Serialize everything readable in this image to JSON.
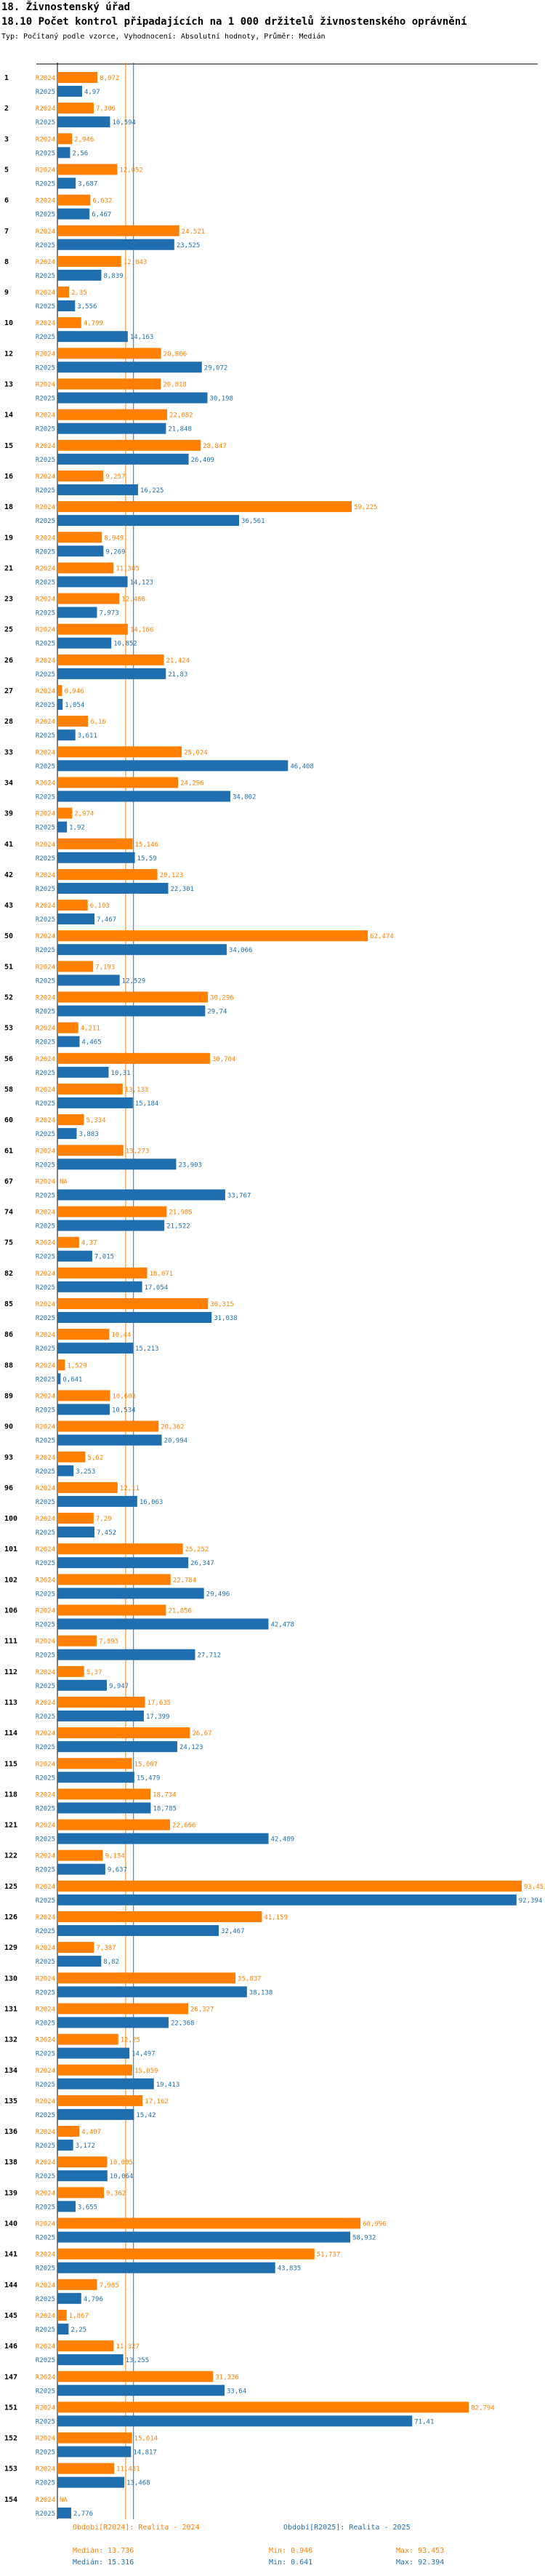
{
  "header": {
    "line1": "18. Živnostenský úřad",
    "line2": "18.10 Počet kontrol připadajících na 1 000 držitelů živnostenského oprávnění",
    "line3": "Typ: Počítaný podle vzorce, Vyhodnocení: Absolutní hodnoty, Průměr: Medián"
  },
  "colors": {
    "r2024": "#ff8000",
    "r2025": "#1f6fb0",
    "axis": "#000000",
    "median2024": "#ff8000",
    "median2025": "#1f6fb0"
  },
  "chart_data": {
    "type": "bar",
    "orientation": "horizontal",
    "title": "18.10 Počet kontrol připadajících na 1 000 držitelů živnostenského oprávnění",
    "xlim": [
      0,
      93.453
    ],
    "series_labels": [
      "R2024",
      "R2025"
    ],
    "categories": [
      "1",
      "2",
      "3",
      "5",
      "6",
      "7",
      "8",
      "9",
      "10",
      "12",
      "13",
      "14",
      "15",
      "16",
      "18",
      "19",
      "21",
      "23",
      "25",
      "26",
      "27",
      "28",
      "33",
      "34",
      "39",
      "41",
      "42",
      "43",
      "50",
      "51",
      "52",
      "53",
      "56",
      "58",
      "60",
      "61",
      "67",
      "74",
      "75",
      "82",
      "85",
      "86",
      "88",
      "89",
      "90",
      "93",
      "96",
      "100",
      "101",
      "102",
      "106",
      "111",
      "112",
      "113",
      "114",
      "115",
      "118",
      "121",
      "122",
      "125",
      "126",
      "129",
      "130",
      "131",
      "132",
      "134",
      "135",
      "136",
      "138",
      "139",
      "140",
      "141",
      "144",
      "145",
      "146",
      "147",
      "151",
      "152",
      "153",
      "154"
    ],
    "r2024": [
      8.072,
      7.306,
      2.946,
      12.052,
      6.632,
      24.521,
      12.843,
      2.35,
      4.799,
      20.866,
      20.818,
      22.082,
      28.847,
      9.257,
      59.225,
      8.949,
      11.305,
      12.486,
      14.166,
      21.424,
      0.946,
      6.16,
      25.024,
      24.296,
      2.974,
      15.146,
      20.123,
      6.103,
      62.474,
      7.193,
      30.296,
      4.211,
      30.704,
      13.133,
      5.334,
      13.273,
      null,
      21.985,
      4.37,
      18.071,
      30.315,
      10.44,
      1.529,
      10.603,
      20.362,
      5.62,
      12.11,
      7.29,
      25.252,
      22.784,
      21.856,
      7.893,
      5.37,
      17.635,
      26.67,
      15.007,
      18.734,
      22.666,
      9.154,
      93.453,
      41.159,
      7.387,
      35.837,
      26.327,
      12.25,
      15.059,
      17.162,
      4.407,
      10.005,
      9.362,
      60.996,
      51.737,
      7.985,
      1.867,
      11.327,
      31.336,
      82.794,
      15.014,
      11.431,
      null
    ],
    "r2025": [
      4.97,
      10.594,
      2.56,
      3.687,
      6.467,
      23.525,
      8.839,
      3.556,
      14.163,
      29.072,
      30.198,
      21.848,
      26.409,
      16.225,
      36.561,
      9.269,
      14.123,
      7.973,
      10.852,
      21.83,
      1.054,
      3.611,
      46.408,
      34.802,
      1.92,
      15.59,
      22.301,
      7.467,
      34.066,
      12.529,
      29.74,
      4.465,
      10.31,
      15.184,
      3.883,
      23.903,
      33.767,
      21.522,
      7.015,
      17.054,
      31.038,
      15.213,
      0.641,
      10.534,
      20.994,
      3.253,
      16.063,
      7.452,
      26.347,
      29.496,
      42.478,
      27.712,
      9.947,
      17.399,
      24.123,
      15.479,
      18.785,
      42.489,
      9.637,
      92.394,
      32.467,
      8.82,
      38.138,
      22.368,
      14.497,
      19.413,
      15.42,
      3.172,
      10.064,
      3.655,
      58.932,
      43.835,
      4.796,
      2.25,
      13.255,
      33.64,
      71.41,
      14.817,
      13.468,
      2.776
    ],
    "median_2024": 13.736,
    "median_2025": 15.316,
    "min_2024": 0.946,
    "min_2025": 0.641,
    "max_2024": 93.453,
    "max_2025": 92.394
  },
  "legend": {
    "name2024": "Období[R2024]: Realita - 2024",
    "name2025": "Období[R2025]: Realita - 2025",
    "median2024": "Medián: 13.736",
    "min2024": "Min: 0.946",
    "max2024": "Max: 93.453",
    "median2025": "Medián: 15.316",
    "min2025": "Min: 0.641",
    "max2025": "Max: 92.394"
  }
}
